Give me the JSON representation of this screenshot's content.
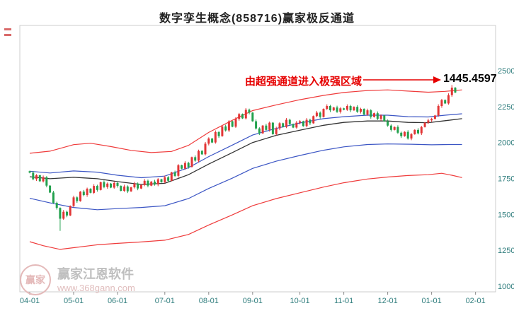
{
  "title": "数字孪生概念(858716)赢家极反通道",
  "annotation": {
    "text": "由超强通道进入极强区域",
    "price_label": "1445.4597",
    "color": "#e60000"
  },
  "watermark": {
    "logo_text": "赢家",
    "name": "赢家江恩软件",
    "url": "www.368gann.com"
  },
  "chart_data": {
    "type": "candlestick",
    "title": "数字孪生概念(858716)赢家极反通道",
    "ylim": [
      1000,
      2500
    ],
    "grid": false,
    "legend_position": "none",
    "y_tick_labels": [
      2500,
      2250,
      2000,
      1750,
      1500,
      1250,
      1000
    ],
    "x_tick_labels": [
      "04-01",
      "05-01",
      "06-01",
      "07-01",
      "08-01",
      "09-01",
      "10-01",
      "11-01",
      "12-01",
      "01-01",
      "02-01"
    ],
    "month_tick_indices": [
      0,
      13,
      26,
      40,
      53,
      66,
      80,
      93,
      106,
      119,
      132
    ],
    "open_first": 1800,
    "closes": [
      1790,
      1745,
      1772,
      1730,
      1758,
      1700,
      1652,
      1580,
      1545,
      1470,
      1518,
      1492,
      1558,
      1618,
      1592,
      1658,
      1634,
      1678,
      1650,
      1698,
      1670,
      1724,
      1690,
      1714,
      1686,
      1718,
      1698,
      1664,
      1694,
      1660,
      1688,
      1714,
      1680,
      1704,
      1734,
      1700,
      1728,
      1708,
      1744,
      1724,
      1758,
      1734,
      1792,
      1768,
      1842,
      1818,
      1858,
      1830,
      1898,
      1874,
      1942,
      1918,
      1992,
      2028,
      2000,
      2072,
      2044,
      2112,
      2084,
      2148,
      2110,
      2164,
      2198,
      2168,
      2228,
      2208,
      2148,
      2098,
      2064,
      2118,
      2088,
      2138,
      2058,
      2098,
      2134,
      2108,
      2158,
      2128,
      2104,
      2138,
      2148,
      2114,
      2158,
      2134,
      2184,
      2208,
      2178,
      2234,
      2254,
      2224,
      2244,
      2214,
      2238,
      2228,
      2254,
      2224,
      2248,
      2214,
      2234,
      2194,
      2224,
      2178,
      2204,
      2164,
      2188,
      2148,
      2118,
      2088,
      2108,
      2068,
      2044,
      2074,
      2028,
      2058,
      2088,
      2064,
      2108,
      2138,
      2154,
      2164,
      2188,
      2254,
      2296,
      2272,
      2330,
      2382,
      2348
    ],
    "wick_overrides": {
      "9": {
        "low": 1385
      },
      "125": {
        "high": 2400
      }
    },
    "channel_lines": [
      {
        "name": "upper_red_channel",
        "color": "#ef3b3b",
        "width": 1.2,
        "points": [
          [
            0,
            1925
          ],
          [
            6,
            1940
          ],
          [
            13,
            1985
          ],
          [
            18,
            1995
          ],
          [
            24,
            1972
          ],
          [
            30,
            1945
          ],
          [
            36,
            1930
          ],
          [
            42,
            1938
          ],
          [
            47,
            1980
          ],
          [
            53,
            2070
          ],
          [
            60,
            2155
          ],
          [
            66,
            2222
          ],
          [
            73,
            2262
          ],
          [
            80,
            2298
          ],
          [
            87,
            2328
          ],
          [
            93,
            2348
          ],
          [
            100,
            2362
          ],
          [
            106,
            2366
          ],
          [
            112,
            2358
          ],
          [
            118,
            2350
          ],
          [
            123,
            2356
          ],
          [
            128,
            2366
          ]
        ]
      },
      {
        "name": "upper_blue_channel",
        "color": "#3b55c4",
        "width": 1.2,
        "points": [
          [
            0,
            1800
          ],
          [
            6,
            1788
          ],
          [
            13,
            1802
          ],
          [
            20,
            1794
          ],
          [
            26,
            1772
          ],
          [
            33,
            1755
          ],
          [
            40,
            1766
          ],
          [
            47,
            1825
          ],
          [
            53,
            1902
          ],
          [
            60,
            1982
          ],
          [
            66,
            2052
          ],
          [
            73,
            2098
          ],
          [
            80,
            2136
          ],
          [
            87,
            2166
          ],
          [
            93,
            2180
          ],
          [
            100,
            2190
          ],
          [
            106,
            2190
          ],
          [
            112,
            2180
          ],
          [
            118,
            2178
          ],
          [
            123,
            2190
          ],
          [
            128,
            2200
          ]
        ]
      },
      {
        "name": "middle_black_line",
        "color": "#333333",
        "width": 1.3,
        "points": [
          [
            0,
            1762
          ],
          [
            6,
            1748
          ],
          [
            13,
            1758
          ],
          [
            20,
            1748
          ],
          [
            26,
            1728
          ],
          [
            33,
            1708
          ],
          [
            40,
            1716
          ],
          [
            47,
            1776
          ],
          [
            53,
            1850
          ],
          [
            60,
            1930
          ],
          [
            66,
            2000
          ],
          [
            73,
            2050
          ],
          [
            80,
            2086
          ],
          [
            87,
            2120
          ],
          [
            93,
            2140
          ],
          [
            100,
            2150
          ],
          [
            106,
            2150
          ],
          [
            112,
            2140
          ],
          [
            118,
            2138
          ],
          [
            123,
            2152
          ],
          [
            128,
            2166
          ]
        ]
      },
      {
        "name": "lower_blue_channel",
        "color": "#3b55c4",
        "width": 1.2,
        "points": [
          [
            0,
            1612
          ],
          [
            6,
            1580
          ],
          [
            13,
            1548
          ],
          [
            20,
            1532
          ],
          [
            26,
            1540
          ],
          [
            33,
            1548
          ],
          [
            40,
            1560
          ],
          [
            47,
            1610
          ],
          [
            53,
            1680
          ],
          [
            60,
            1752
          ],
          [
            66,
            1820
          ],
          [
            73,
            1870
          ],
          [
            80,
            1910
          ],
          [
            87,
            1946
          ],
          [
            93,
            1970
          ],
          [
            100,
            1986
          ],
          [
            106,
            1990
          ],
          [
            113,
            1988
          ],
          [
            119,
            1984
          ],
          [
            124,
            1986
          ],
          [
            128,
            1986
          ]
        ]
      },
      {
        "name": "lower_red_channel",
        "color": "#ef3b3b",
        "width": 1.2,
        "points": [
          [
            0,
            1310
          ],
          [
            4,
            1282
          ],
          [
            9,
            1256
          ],
          [
            13,
            1268
          ],
          [
            20,
            1288
          ],
          [
            26,
            1298
          ],
          [
            33,
            1308
          ],
          [
            40,
            1320
          ],
          [
            47,
            1360
          ],
          [
            53,
            1426
          ],
          [
            60,
            1496
          ],
          [
            66,
            1560
          ],
          [
            73,
            1610
          ],
          [
            80,
            1650
          ],
          [
            87,
            1690
          ],
          [
            93,
            1720
          ],
          [
            100,
            1746
          ],
          [
            106,
            1760
          ],
          [
            112,
            1770
          ],
          [
            118,
            1776
          ],
          [
            122,
            1786
          ],
          [
            125,
            1772
          ],
          [
            128,
            1756
          ]
        ]
      }
    ],
    "colors": {
      "up": "#e23535",
      "down": "#23a14e",
      "axis_text": "#2f7d7d",
      "axis_line": "#8a8a8a",
      "border": "#cccccc"
    }
  }
}
